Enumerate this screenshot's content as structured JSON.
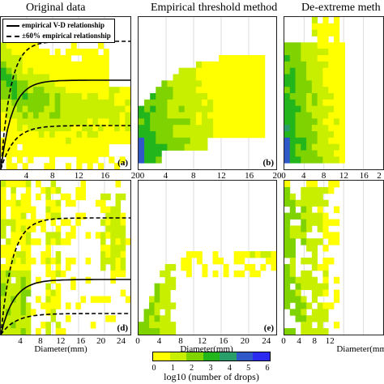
{
  "figure": {
    "column_titles": [
      "Original data",
      "Empirical threshold method",
      "De-extreme meth"
    ],
    "legend": {
      "solid": "empirical V-D relationship",
      "dashed": "±60% empirical relationship"
    },
    "colorbar": {
      "label": "log10 (number of drops)",
      "ticks": [
        "0",
        "1",
        "2",
        "3",
        "4",
        "5",
        "6"
      ],
      "colors": [
        "#ffff00",
        "#c8ee00",
        "#7fd300",
        "#22b51c",
        "#2a9e6a",
        "#3058c8",
        "#2a2af0"
      ]
    }
  },
  "chart_data": [
    {
      "type": "heatmap",
      "panel_label": "(a)",
      "title": "Original data",
      "row": "top",
      "xlabel": "",
      "xticks": [
        "4",
        "8",
        "12",
        "16"
      ],
      "xlim": [
        0,
        20
      ],
      "extent_diameter_mm": [
        0,
        20
      ],
      "max_log10_drops": 4,
      "reference_curves": [
        "empirical V-D relationship",
        "±60% empirical relationship"
      ]
    },
    {
      "type": "heatmap",
      "panel_label": "(b)",
      "title": "Empirical threshold method",
      "row": "top",
      "xlabel": "",
      "xticks": [
        "200",
        "4",
        "8",
        "12",
        "16",
        "20"
      ],
      "xlim": [
        0,
        20
      ],
      "extent_diameter_mm": [
        0,
        19
      ],
      "max_log10_drops": 5
    },
    {
      "type": "heatmap",
      "panel_label": "",
      "title": "De-extreme meth",
      "row": "top",
      "xlabel": "",
      "xticks": [
        "0",
        "4",
        "8",
        "12",
        "16",
        "2"
      ],
      "xlim": [
        0,
        20
      ],
      "extent_diameter_mm": [
        0,
        12
      ],
      "max_log10_drops": 5
    },
    {
      "type": "heatmap",
      "panel_label": "(d)",
      "title": "",
      "row": "bottom",
      "xlabel": "Diameter(mm)",
      "xticks": [
        "4",
        "8",
        "12",
        "16",
        "20",
        "24"
      ],
      "xlim": [
        0,
        26
      ],
      "extent_diameter_mm": [
        0,
        25
      ],
      "max_log10_drops": 2,
      "reference_curves": [
        "empirical V-D relationship",
        "±60% empirical relationship"
      ]
    },
    {
      "type": "heatmap",
      "panel_label": "(e)",
      "title": "",
      "row": "bottom",
      "xlabel": "Diameter(mm)",
      "xticks": [
        "0",
        "4",
        "8",
        "12",
        "16",
        "20",
        "24"
      ],
      "xlim": [
        0,
        26
      ],
      "extent_diameter_mm": [
        0,
        25
      ],
      "max_log10_drops": 2
    },
    {
      "type": "heatmap",
      "panel_label": "",
      "title": "",
      "row": "bottom",
      "xlabel": "Diameter(mm)",
      "xticks": [
        "0",
        "4",
        "8",
        "12"
      ],
      "xlim": [
        0,
        26
      ],
      "extent_diameter_mm": [
        0,
        12
      ],
      "max_log10_drops": 2
    }
  ]
}
